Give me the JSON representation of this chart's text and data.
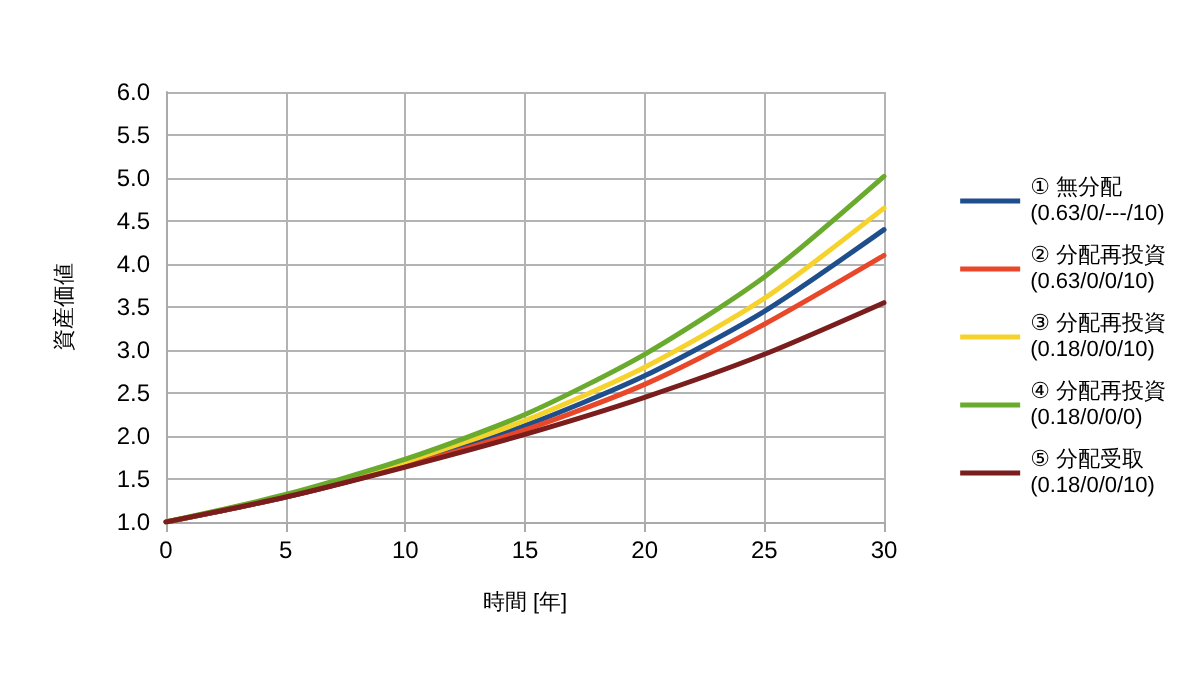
{
  "chart_data": {
    "type": "line",
    "xlabel": "時間 [年]",
    "ylabel": "資産価値",
    "x": [
      0,
      5,
      10,
      15,
      20,
      25,
      30
    ],
    "series": [
      {
        "name": "① 無分配\n(0.63/0/---/10)",
        "color": "#1f4e8c",
        "values": [
          1.0,
          1.29,
          1.66,
          2.12,
          2.7,
          3.45,
          4.4
        ]
      },
      {
        "name": "② 分配再投資\n(0.63/0/0/10)",
        "color": "#e8472a",
        "values": [
          1.0,
          1.29,
          1.65,
          2.07,
          2.6,
          3.3,
          4.1
        ]
      },
      {
        "name": "③ 分配再投資\n(0.18/0/0/10)",
        "color": "#f5d32c",
        "values": [
          1.0,
          1.31,
          1.7,
          2.18,
          2.8,
          3.6,
          4.65
        ]
      },
      {
        "name": "④ 分配再投資\n(0.18/0/0/0)",
        "color": "#6aab2e",
        "values": [
          1.0,
          1.32,
          1.73,
          2.25,
          2.95,
          3.85,
          5.02
        ]
      },
      {
        "name": "⑤ 分配受取\n(0.18/0/0/10)",
        "color": "#7b1d1d",
        "values": [
          1.0,
          1.29,
          1.64,
          2.02,
          2.45,
          2.95,
          3.55
        ]
      }
    ],
    "xlim": [
      0,
      30
    ],
    "xticks": [
      0,
      5,
      10,
      15,
      20,
      25,
      30
    ],
    "ylim": [
      1,
      6
    ],
    "yticks": [
      {
        "value": 1,
        "label": "1.0"
      },
      1.5,
      {
        "value": 2,
        "label": "2.0"
      },
      2.5,
      {
        "value": 3,
        "label": "3.0"
      },
      3.5,
      {
        "value": 4,
        "label": "4.0"
      },
      4.5,
      {
        "value": 5,
        "label": "5.0"
      },
      5.5,
      {
        "value": 6,
        "label": "6.0"
      }
    ],
    "grid": true,
    "legend": "right",
    "marker": "none",
    "line_style": "solid"
  }
}
